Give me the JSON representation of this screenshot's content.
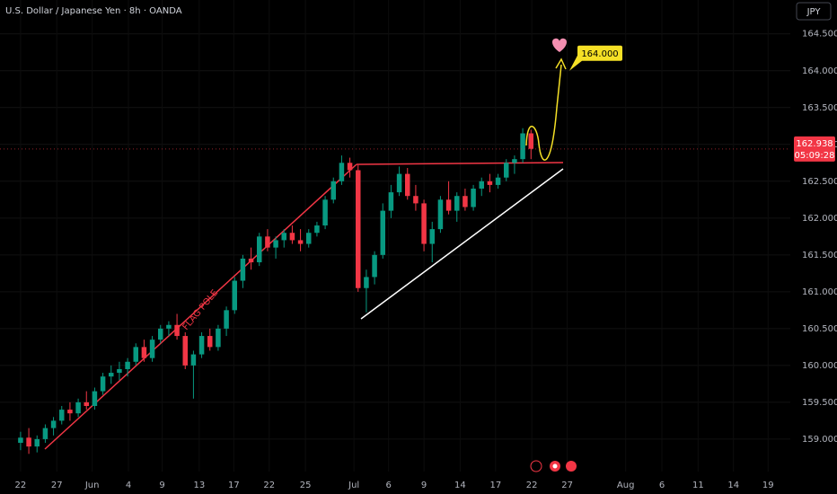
{
  "chart_data": {
    "type": "candlestick",
    "title": "U.S. Dollar / Japanese Yen · 8h · OANDA",
    "currency": "JPY",
    "annotation": "FLAG POLE",
    "up_color": "#089981",
    "down_color": "#f23645",
    "grid": true,
    "open": [
      158.95,
      159.02,
      158.9,
      159.0,
      159.15,
      159.25,
      159.4,
      159.35,
      159.5,
      159.45,
      159.65,
      159.85,
      159.9,
      159.95,
      160.05,
      160.25,
      160.1,
      160.35,
      160.5,
      160.55,
      160.4,
      160.0,
      160.15,
      160.4,
      160.25,
      160.5,
      160.75,
      161.15,
      161.45,
      161.4,
      161.75,
      161.6,
      161.7,
      161.8,
      161.7,
      161.65,
      161.8,
      161.9,
      162.25,
      162.5,
      162.75,
      162.65,
      161.05,
      161.2,
      161.5,
      162.1,
      162.35,
      162.6,
      162.3,
      162.2,
      161.65,
      161.85,
      162.25,
      162.1,
      162.3,
      162.15,
      162.4,
      162.5,
      162.45,
      162.55,
      162.75,
      162.8,
      163.15
    ],
    "high": [
      159.1,
      159.15,
      159.05,
      159.2,
      159.3,
      159.45,
      159.5,
      159.55,
      159.65,
      159.7,
      159.9,
      160.0,
      160.05,
      160.1,
      160.3,
      160.35,
      160.4,
      160.55,
      160.6,
      160.7,
      160.45,
      160.2,
      160.45,
      160.5,
      160.55,
      160.8,
      161.2,
      161.5,
      161.6,
      161.8,
      161.85,
      161.75,
      161.85,
      161.9,
      161.85,
      161.85,
      161.95,
      162.3,
      162.55,
      162.85,
      162.82,
      162.72,
      161.3,
      161.55,
      162.2,
      162.45,
      162.7,
      162.68,
      162.45,
      162.25,
      161.95,
      162.3,
      162.5,
      162.35,
      162.4,
      162.45,
      162.55,
      162.6,
      162.6,
      162.8,
      162.85,
      163.22,
      163.2
    ],
    "low": [
      158.85,
      158.8,
      158.82,
      158.95,
      159.05,
      159.2,
      159.25,
      159.3,
      159.4,
      159.4,
      159.6,
      159.75,
      159.8,
      159.85,
      160.0,
      160.05,
      160.05,
      160.3,
      160.4,
      160.35,
      159.95,
      159.55,
      160.1,
      160.2,
      160.2,
      160.4,
      160.7,
      161.05,
      161.3,
      161.35,
      161.55,
      161.45,
      161.6,
      161.65,
      161.55,
      161.6,
      161.75,
      161.85,
      162.2,
      162.45,
      162.55,
      161.0,
      160.72,
      161.1,
      161.45,
      162.0,
      162.3,
      162.25,
      162.1,
      161.55,
      161.4,
      161.8,
      162.05,
      161.95,
      162.1,
      162.1,
      162.3,
      162.35,
      162.4,
      162.5,
      162.6,
      162.75,
      162.8
    ],
    "close": [
      159.02,
      158.9,
      159.0,
      159.15,
      159.25,
      159.4,
      159.35,
      159.5,
      159.45,
      159.65,
      159.85,
      159.9,
      159.95,
      160.05,
      160.25,
      160.1,
      160.35,
      160.5,
      160.55,
      160.4,
      160.0,
      160.15,
      160.4,
      160.25,
      160.5,
      160.75,
      161.15,
      161.45,
      161.4,
      161.75,
      161.6,
      161.7,
      161.8,
      161.7,
      161.65,
      161.8,
      161.9,
      162.25,
      162.5,
      162.75,
      162.65,
      161.05,
      161.2,
      161.5,
      162.1,
      162.35,
      162.6,
      162.3,
      162.2,
      161.65,
      161.85,
      162.25,
      162.1,
      162.3,
      162.15,
      162.4,
      162.5,
      162.45,
      162.55,
      162.75,
      162.8,
      163.15,
      162.94
    ],
    "last_price": {
      "value": 162.938,
      "label": "162.938"
    },
    "countdown": "05:09:28",
    "target": {
      "value": 164,
      "label": "164.000"
    },
    "xlim": [
      -2.5,
      93.5
    ],
    "xticks": [
      {
        "value": 0,
        "label": "22"
      },
      {
        "value": 4.4,
        "label": "27"
      },
      {
        "value": 8.7,
        "label": "Jun"
      },
      {
        "value": 13.1,
        "label": "4"
      },
      {
        "value": 17.2,
        "label": "9"
      },
      {
        "value": 21.7,
        "label": "13"
      },
      {
        "value": 25.9,
        "label": "17"
      },
      {
        "value": 30.2,
        "label": "22"
      },
      {
        "value": 34.6,
        "label": "25"
      },
      {
        "value": 40.5,
        "label": "Jul"
      },
      {
        "value": 44.7,
        "label": "6"
      },
      {
        "value": 49,
        "label": "9"
      },
      {
        "value": 53.4,
        "label": "14"
      },
      {
        "value": 57.7,
        "label": "17"
      },
      {
        "value": 62.1,
        "label": "22"
      },
      {
        "value": 66.4,
        "label": "27"
      },
      {
        "value": 73.5,
        "label": "Aug"
      },
      {
        "value": 77.9,
        "label": "6"
      },
      {
        "value": 82.3,
        "label": "11"
      },
      {
        "value": 86.6,
        "label": "14"
      },
      {
        "value": 90.8,
        "label": "19"
      }
    ],
    "ylim": [
      158.56,
      164.96
    ],
    "yticks": [
      {
        "value": 159,
        "label": "159.000"
      },
      {
        "value": 159.5,
        "label": "159.500"
      },
      {
        "value": 160,
        "label": "160.000"
      },
      {
        "value": 160.5,
        "label": "160.500"
      },
      {
        "value": 161,
        "label": "161.000"
      },
      {
        "value": 161.5,
        "label": "161.500"
      },
      {
        "value": 162,
        "label": "162.000"
      },
      {
        "value": 162.5,
        "label": "162.500"
      },
      {
        "value": 163,
        "label": "163.000"
      },
      {
        "value": 163.5,
        "label": "163.500"
      },
      {
        "value": 164,
        "label": "164.000"
      },
      {
        "value": 164.5,
        "label": "164.500"
      }
    ]
  }
}
